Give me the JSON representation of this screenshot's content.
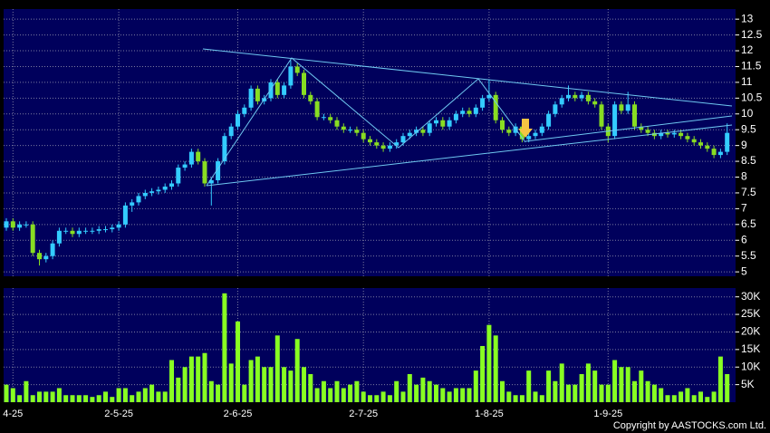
{
  "chart_data": {
    "type": "candlestick",
    "categories": [
      null,
      "4-25",
      null,
      null,
      null,
      null,
      null,
      null,
      null,
      null,
      null,
      null,
      null,
      null,
      null,
      null,
      null,
      "2-5-25",
      null,
      null,
      null,
      null,
      null,
      null,
      null,
      null,
      null,
      null,
      null,
      null,
      null,
      null,
      null,
      null,
      null,
      "2-6-25",
      null,
      null,
      null,
      null,
      null,
      null,
      null,
      null,
      null,
      null,
      null,
      null,
      null,
      null,
      null,
      null,
      null,
      null,
      "2-7-25",
      null,
      null,
      null,
      null,
      null,
      null,
      null,
      null,
      null,
      null,
      null,
      null,
      null,
      null,
      null,
      null,
      null,
      null,
      "1-8-25",
      null,
      null,
      null,
      null,
      null,
      null,
      null,
      null,
      null,
      null,
      null,
      null,
      null,
      null,
      null,
      null,
      null,
      "1-9-25",
      null,
      null,
      null,
      null,
      null,
      null,
      null,
      null,
      null,
      null,
      null,
      null,
      null,
      null,
      null,
      null,
      null,
      null
    ],
    "open": [
      6.4,
      6.6,
      6.4,
      6.5,
      6.5,
      5.6,
      5.4,
      5.5,
      5.9,
      6.3,
      6.3,
      6.2,
      6.3,
      6.3,
      6.3,
      6.35,
      6.35,
      6.4,
      6.5,
      7.1,
      7.2,
      7.4,
      7.5,
      7.55,
      7.6,
      7.7,
      7.8,
      8.3,
      8.4,
      8.8,
      8.5,
      7.8,
      7.9,
      8.5,
      9.3,
      9.6,
      10.0,
      10.2,
      10.8,
      10.4,
      10.5,
      11.0,
      10.6,
      10.9,
      11.5,
      11.3,
      10.6,
      10.4,
      9.9,
      9.9,
      9.8,
      9.6,
      9.5,
      9.5,
      9.4,
      9.2,
      9.1,
      9.0,
      8.9,
      9.0,
      9.1,
      9.3,
      9.4,
      9.5,
      9.4,
      9.7,
      9.8,
      9.6,
      9.8,
      10.0,
      10.1,
      10.0,
      10.2,
      10.5,
      10.6,
      9.8,
      9.5,
      9.4,
      9.6,
      9.2,
      9.3,
      9.4,
      9.6,
      10.0,
      10.3,
      10.5,
      10.6,
      10.5,
      10.6,
      10.4,
      10.3,
      9.6,
      9.3,
      10.3,
      10.1,
      10.3,
      9.6,
      9.5,
      9.4,
      9.3,
      9.4,
      9.35,
      9.4,
      9.3,
      9.2,
      9.1,
      9.0,
      8.9,
      8.7,
      8.8
    ],
    "high": [
      6.7,
      6.7,
      6.6,
      6.6,
      6.6,
      5.7,
      5.6,
      6.0,
      6.4,
      6.4,
      6.4,
      6.4,
      6.4,
      6.4,
      6.45,
      6.45,
      6.5,
      6.6,
      7.2,
      7.3,
      7.5,
      7.6,
      7.65,
      7.7,
      7.8,
      7.9,
      8.4,
      8.5,
      8.9,
      8.9,
      8.6,
      8.0,
      8.6,
      9.4,
      9.7,
      10.1,
      10.3,
      10.9,
      10.9,
      10.6,
      11.1,
      11.1,
      11.0,
      11.7,
      11.6,
      11.4,
      10.7,
      10.5,
      10.0,
      10.0,
      9.9,
      9.7,
      9.6,
      9.6,
      9.5,
      9.3,
      9.2,
      9.1,
      9.1,
      9.2,
      9.4,
      9.5,
      9.6,
      9.6,
      9.8,
      9.9,
      9.9,
      9.9,
      10.1,
      10.2,
      10.2,
      10.3,
      10.6,
      11.1,
      10.7,
      9.9,
      9.6,
      9.7,
      9.7,
      9.4,
      9.5,
      9.7,
      10.1,
      10.4,
      10.6,
      10.9,
      10.7,
      10.7,
      10.7,
      10.5,
      10.4,
      9.7,
      10.4,
      10.4,
      10.7,
      10.4,
      9.7,
      9.6,
      9.5,
      9.5,
      9.5,
      9.5,
      9.5,
      9.4,
      9.3,
      9.2,
      9.1,
      9.0,
      8.9,
      9.7
    ],
    "low": [
      6.3,
      6.3,
      6.3,
      6.4,
      5.5,
      5.2,
      5.3,
      5.4,
      5.8,
      6.2,
      6.1,
      6.1,
      6.2,
      6.2,
      6.2,
      6.25,
      6.25,
      6.3,
      6.4,
      6.9,
      7.1,
      7.3,
      7.4,
      7.45,
      7.5,
      7.6,
      7.7,
      8.2,
      8.3,
      8.4,
      7.7,
      7.1,
      7.8,
      8.4,
      9.2,
      9.5,
      9.9,
      10.1,
      10.3,
      10.3,
      10.4,
      10.5,
      10.5,
      10.8,
      11.2,
      10.5,
      10.3,
      9.8,
      9.8,
      9.7,
      9.5,
      9.4,
      9.4,
      9.3,
      9.1,
      9.0,
      8.9,
      8.8,
      8.8,
      8.9,
      9.0,
      9.2,
      9.3,
      9.3,
      9.3,
      9.6,
      9.5,
      9.5,
      9.7,
      9.9,
      9.9,
      9.9,
      10.1,
      10.4,
      9.7,
      9.4,
      9.3,
      9.3,
      9.1,
      9.1,
      9.2,
      9.3,
      9.5,
      9.9,
      10.2,
      10.4,
      10.4,
      10.4,
      10.3,
      10.2,
      9.5,
      9.1,
      9.2,
      10.0,
      10.0,
      9.5,
      9.4,
      9.3,
      9.2,
      9.2,
      9.25,
      9.25,
      9.2,
      9.1,
      9.0,
      8.9,
      8.8,
      8.6,
      8.6,
      8.7
    ],
    "close": [
      6.6,
      6.4,
      6.5,
      6.5,
      5.6,
      5.4,
      5.5,
      5.9,
      6.3,
      6.3,
      6.2,
      6.3,
      6.3,
      6.3,
      6.35,
      6.35,
      6.4,
      6.5,
      7.1,
      7.2,
      7.4,
      7.5,
      7.55,
      7.6,
      7.7,
      7.8,
      8.3,
      8.4,
      8.8,
      8.5,
      7.8,
      7.9,
      8.5,
      9.3,
      9.6,
      10.0,
      10.2,
      10.8,
      10.4,
      10.5,
      11.0,
      10.6,
      10.9,
      11.5,
      11.3,
      10.6,
      10.4,
      9.9,
      9.9,
      9.8,
      9.6,
      9.5,
      9.5,
      9.4,
      9.2,
      9.1,
      9.0,
      8.9,
      9.0,
      9.1,
      9.3,
      9.4,
      9.5,
      9.4,
      9.7,
      9.8,
      9.6,
      9.8,
      10.0,
      10.1,
      10.0,
      10.2,
      10.5,
      10.6,
      9.8,
      9.5,
      9.4,
      9.6,
      9.2,
      9.3,
      9.4,
      9.6,
      10.0,
      10.3,
      10.5,
      10.6,
      10.5,
      10.6,
      10.4,
      10.3,
      9.6,
      9.3,
      10.3,
      10.1,
      10.3,
      9.6,
      9.5,
      9.4,
      9.3,
      9.4,
      9.35,
      9.4,
      9.3,
      9.2,
      9.1,
      9.0,
      8.9,
      8.7,
      8.8,
      9.4
    ],
    "volume": [
      5000,
      4000,
      2000,
      6000,
      2000,
      3000,
      3000,
      3000,
      4000,
      2000,
      2000,
      2000,
      2000,
      1500,
      2000,
      3000,
      1500,
      4000,
      4000,
      2000,
      3000,
      4000,
      5000,
      3000,
      3000,
      12000,
      7000,
      10000,
      13000,
      13000,
      14000,
      6000,
      5000,
      31000,
      11000,
      23000,
      5000,
      12000,
      13000,
      10000,
      10000,
      19000,
      10000,
      9000,
      18000,
      10000,
      8000,
      4000,
      6000,
      4000,
      6000,
      4000,
      5000,
      6000,
      3000,
      2000,
      2000,
      3000,
      2000,
      6000,
      3000,
      8000,
      5000,
      7000,
      6000,
      5000,
      4000,
      3000,
      4000,
      4000,
      4000,
      9000,
      16000,
      22000,
      19000,
      6000,
      3000,
      2000,
      2000,
      9000,
      3000,
      2000,
      9000,
      6000,
      11000,
      5000,
      5000,
      8000,
      11000,
      9000,
      5000,
      5000,
      12000,
      10000,
      10000,
      6000,
      9000,
      6000,
      5000,
      4000,
      2000,
      2000,
      3000,
      4000,
      2000,
      3000,
      1500,
      3000,
      13000,
      8000
    ],
    "up_color": "#33ccff",
    "down_color": "#88dd22",
    "volume_color": "#88ff22",
    "ylim": [
      4.86,
      13.32
    ],
    "yticks": [
      5,
      5.5,
      6,
      6.5,
      7,
      7.5,
      8,
      8.5,
      9,
      9.5,
      10,
      10.5,
      11,
      11.5,
      12,
      12.5,
      13
    ],
    "y2lim": [
      0,
      32500
    ],
    "y2ticks": [
      {
        "value": 5000,
        "label": "5K"
      },
      {
        "value": 10000,
        "label": "10K"
      },
      {
        "value": 15000,
        "label": "15K"
      },
      {
        "value": 20000,
        "label": "20K"
      },
      {
        "value": 25000,
        "label": "25K"
      },
      {
        "value": 30000,
        "label": "30K"
      }
    ],
    "grid": true,
    "copyright": "Copyright by AASTOCKS.com Ltd."
  }
}
